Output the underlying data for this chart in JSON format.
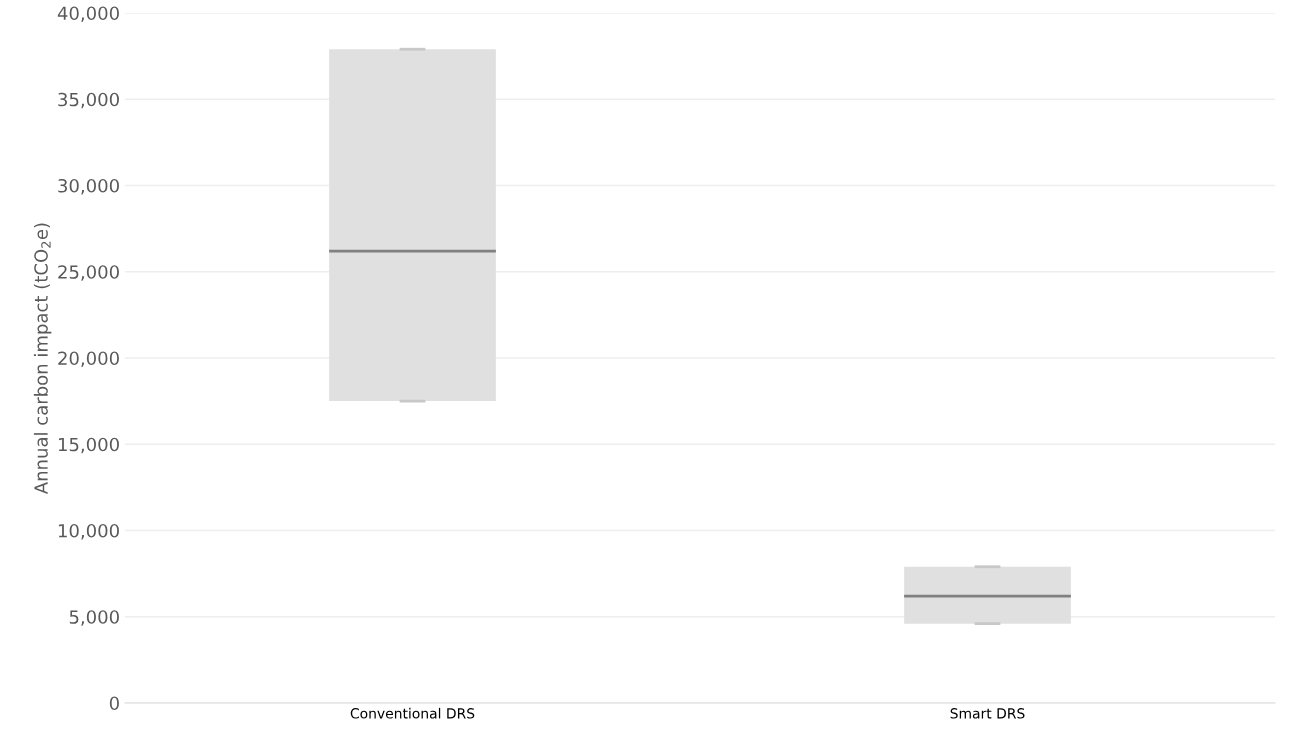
{
  "chart_data": {
    "type": "box",
    "ylabel": "Annual carbon impact (tCO$_{2}$e)",
    "categories": [
      "Conventional DRS",
      "Smart DRS"
    ],
    "boxes": [
      {
        "low": 17500,
        "q1": 17500,
        "median": 26200,
        "q3": 37900,
        "high": 37900
      },
      {
        "low": 4600,
        "q1": 4600,
        "median": 6200,
        "q3": 7900,
        "high": 7900
      }
    ],
    "color": "#e0e0e0",
    "ylim": [
      0,
      40000
    ],
    "yticks": [
      {
        "value": 0,
        "label": "0"
      },
      {
        "value": 5000,
        "label": "5,000"
      },
      {
        "value": 10000,
        "label": "10,000"
      },
      {
        "value": 15000,
        "label": "15,000"
      },
      {
        "value": 20000,
        "label": "20,000"
      },
      {
        "value": 25000,
        "label": "25,000"
      },
      {
        "value": 30000,
        "label": "30,000"
      },
      {
        "value": 35000,
        "label": "35,000"
      },
      {
        "value": 40000,
        "label": "40,000"
      }
    ],
    "grid": "y"
  }
}
